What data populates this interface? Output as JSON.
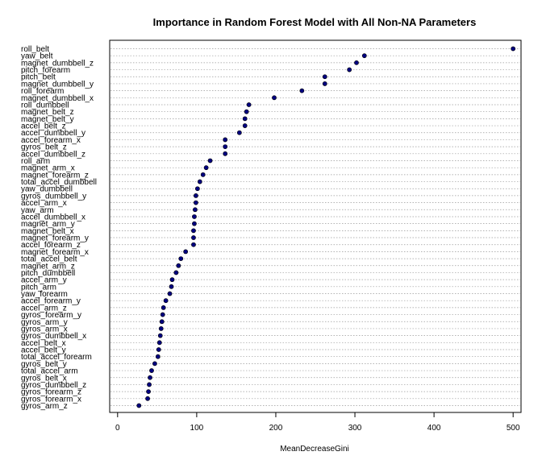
{
  "chart_data": {
    "type": "scatter",
    "title": "Importance in Random Forest Model with All Non-NA Parameters",
    "xlabel": "MeanDecreaseGini",
    "ylabel": "",
    "xlim": [
      -10,
      510
    ],
    "xticks": [
      "0",
      "100",
      "200",
      "300",
      "400",
      "500"
    ],
    "xtick_values": [
      0,
      100,
      200,
      300,
      400,
      500
    ],
    "grid": "horizontal dotted",
    "point_color": "#000080",
    "categories": [
      "roll_belt",
      "yaw_belt",
      "magnet_dumbbell_z",
      "pitch_forearm",
      "pitch_belt",
      "magnet_dumbbell_y",
      "roll_forearm",
      "magnet_dumbbell_x",
      "roll_dumbbell",
      "magnet_belt_z",
      "magnet_belt_y",
      "accel_belt_z",
      "accel_dumbbell_y",
      "accel_forearm_x",
      "gyros_belt_z",
      "accel_dumbbell_z",
      "roll_arm",
      "magnet_arm_x",
      "magnet_forearm_z",
      "total_accel_dumbbell",
      "yaw_dumbbell",
      "gyros_dumbbell_y",
      "accel_arm_x",
      "yaw_arm",
      "accel_dumbbell_x",
      "magnet_arm_y",
      "magnet_belt_x",
      "magnet_forearm_y",
      "accel_forearm_z",
      "magnet_forearm_x",
      "total_accel_belt",
      "magnet_arm_z",
      "pitch_dumbbell",
      "accel_arm_y",
      "pitch_arm",
      "yaw_forearm",
      "accel_forearm_y",
      "accel_arm_z",
      "gyros_forearm_y",
      "gyros_arm_y",
      "gyros_arm_x",
      "gyros_dumbbell_x",
      "accel_belt_x",
      "accel_belt_y",
      "total_accel_forearm",
      "gyros_belt_y",
      "total_accel_arm",
      "gyros_belt_x",
      "gyros_dumbbell_z",
      "gyros_forearm_z",
      "gyros_forearm_x",
      "gyros_arm_z"
    ],
    "values": [
      500,
      312,
      302,
      293,
      262,
      262,
      233,
      198,
      166,
      163,
      161,
      161,
      154,
      136,
      136,
      136,
      117,
      112,
      108,
      104,
      101,
      99,
      99,
      98,
      97,
      97,
      96,
      96,
      96,
      86,
      80,
      77,
      74,
      69,
      68,
      66,
      61,
      58,
      57,
      56,
      55,
      54,
      53,
      52,
      51,
      47,
      43,
      41,
      40,
      39,
      38,
      27
    ]
  }
}
